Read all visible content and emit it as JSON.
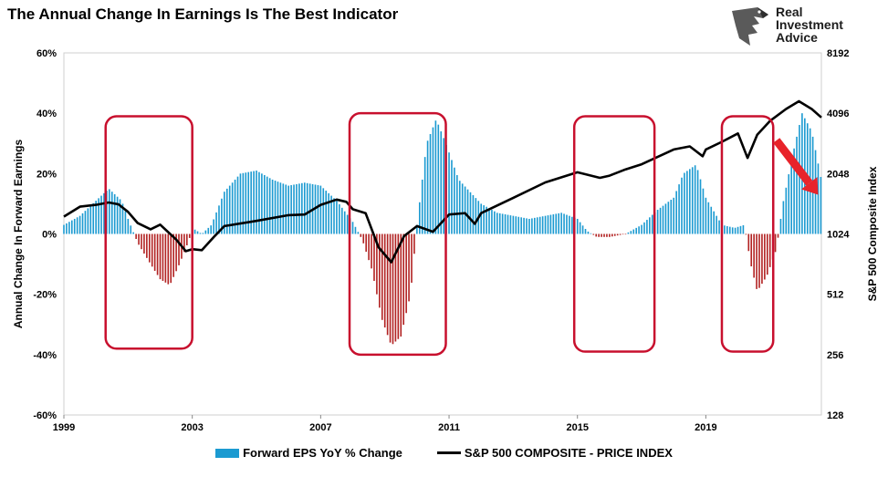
{
  "title": "The Annual Change In Earnings Is The Best Indicator",
  "logo": {
    "lines": [
      "Real",
      "Investment",
      "Advice"
    ],
    "icon": "eagle-head-icon"
  },
  "chart_data": {
    "type": "bar+line",
    "title": "The Annual Change In Earnings Is The Best Indicator",
    "x_ticks": [
      "1999",
      "2003",
      "2007",
      "2011",
      "2015",
      "2019"
    ],
    "x_range": [
      1999,
      2022.6
    ],
    "y_left": {
      "label": "Annual Change In Forward Earnings",
      "ticks": [
        "60%",
        "40%",
        "20%",
        "0%",
        "-20%",
        "-40%",
        "-60%"
      ],
      "range": [
        -60,
        60
      ]
    },
    "y_right": {
      "label": "S&P 500  Composite Index",
      "scale": "log2",
      "ticks": [
        "8192",
        "4096",
        "2048",
        "1024",
        "512",
        "256",
        "128"
      ],
      "range": [
        128,
        8192
      ]
    },
    "colors": {
      "positive": "#1b9ad1",
      "negative": "#b22222",
      "line": "#000000",
      "box": "#c8102e",
      "arrow": "#e8232a"
    },
    "series": [
      {
        "name": "Forward EPS YoY % Change",
        "kind": "bar",
        "points": [
          [
            1999.0,
            3
          ],
          [
            1999.5,
            6
          ],
          [
            2000.0,
            11
          ],
          [
            2000.4,
            15
          ],
          [
            2000.8,
            11
          ],
          [
            2001.0,
            5
          ],
          [
            2001.3,
            -3
          ],
          [
            2001.7,
            -10
          ],
          [
            2002.0,
            -15
          ],
          [
            2002.3,
            -17
          ],
          [
            2002.6,
            -10
          ],
          [
            2002.9,
            -2
          ],
          [
            2003.0,
            2
          ],
          [
            2003.3,
            0
          ],
          [
            2003.6,
            3
          ],
          [
            2004.0,
            14
          ],
          [
            2004.5,
            20
          ],
          [
            2005.0,
            21
          ],
          [
            2005.5,
            18
          ],
          [
            2006.0,
            16
          ],
          [
            2006.5,
            17
          ],
          [
            2007.0,
            16
          ],
          [
            2007.5,
            11
          ],
          [
            2008.0,
            4
          ],
          [
            2008.3,
            -2
          ],
          [
            2008.6,
            -12
          ],
          [
            2008.9,
            -28
          ],
          [
            2009.2,
            -37
          ],
          [
            2009.5,
            -34
          ],
          [
            2009.8,
            -20
          ],
          [
            2010.0,
            3
          ],
          [
            2010.3,
            30
          ],
          [
            2010.6,
            38
          ],
          [
            2010.9,
            30
          ],
          [
            2011.3,
            18
          ],
          [
            2012.0,
            10
          ],
          [
            2012.5,
            7
          ],
          [
            2013.0,
            6
          ],
          [
            2013.5,
            5
          ],
          [
            2014.0,
            6
          ],
          [
            2014.5,
            7
          ],
          [
            2015.0,
            5
          ],
          [
            2015.3,
            1
          ],
          [
            2015.6,
            -1
          ],
          [
            2016.0,
            -1
          ],
          [
            2016.5,
            0
          ],
          [
            2017.0,
            3
          ],
          [
            2017.5,
            8
          ],
          [
            2018.0,
            12
          ],
          [
            2018.3,
            20
          ],
          [
            2018.7,
            23
          ],
          [
            2019.0,
            12
          ],
          [
            2019.5,
            3
          ],
          [
            2019.9,
            2
          ],
          [
            2020.2,
            3
          ],
          [
            2020.4,
            -10
          ],
          [
            2020.6,
            -19
          ],
          [
            2020.9,
            -14
          ],
          [
            2021.2,
            -5
          ],
          [
            2021.4,
            10
          ],
          [
            2021.7,
            26
          ],
          [
            2022.0,
            40
          ],
          [
            2022.3,
            34
          ],
          [
            2022.6,
            18
          ]
        ]
      },
      {
        "name": "S&P 500 COMPOSITE - PRICE INDEX",
        "kind": "line",
        "points": [
          [
            1999.0,
            1250
          ],
          [
            1999.5,
            1400
          ],
          [
            2000.0,
            1430
          ],
          [
            2000.4,
            1470
          ],
          [
            2000.7,
            1440
          ],
          [
            2001.0,
            1320
          ],
          [
            2001.3,
            1160
          ],
          [
            2001.7,
            1080
          ],
          [
            2002.0,
            1140
          ],
          [
            2002.5,
            960
          ],
          [
            2002.8,
            840
          ],
          [
            2003.0,
            860
          ],
          [
            2003.3,
            850
          ],
          [
            2003.7,
            1000
          ],
          [
            2004.0,
            1120
          ],
          [
            2005.0,
            1190
          ],
          [
            2006.0,
            1270
          ],
          [
            2006.5,
            1280
          ],
          [
            2007.0,
            1430
          ],
          [
            2007.5,
            1520
          ],
          [
            2007.8,
            1480
          ],
          [
            2008.0,
            1360
          ],
          [
            2008.4,
            1300
          ],
          [
            2008.8,
            880
          ],
          [
            2009.2,
            740
          ],
          [
            2009.6,
            1000
          ],
          [
            2010.0,
            1120
          ],
          [
            2010.5,
            1050
          ],
          [
            2011.0,
            1280
          ],
          [
            2011.5,
            1300
          ],
          [
            2011.8,
            1150
          ],
          [
            2012.0,
            1300
          ],
          [
            2013.0,
            1550
          ],
          [
            2014.0,
            1850
          ],
          [
            2015.0,
            2080
          ],
          [
            2015.7,
            1950
          ],
          [
            2016.0,
            2000
          ],
          [
            2016.5,
            2150
          ],
          [
            2017.0,
            2280
          ],
          [
            2018.0,
            2700
          ],
          [
            2018.5,
            2800
          ],
          [
            2018.9,
            2500
          ],
          [
            2019.0,
            2700
          ],
          [
            2019.5,
            2950
          ],
          [
            2020.0,
            3250
          ],
          [
            2020.3,
            2450
          ],
          [
            2020.6,
            3200
          ],
          [
            2021.0,
            3750
          ],
          [
            2021.5,
            4300
          ],
          [
            2021.9,
            4700
          ],
          [
            2022.1,
            4500
          ],
          [
            2022.3,
            4300
          ],
          [
            2022.6,
            3900
          ]
        ]
      }
    ],
    "annotations": [
      {
        "kind": "box",
        "x_range": [
          2000.3,
          2003.0
        ],
        "y_range": [
          -38,
          39
        ]
      },
      {
        "kind": "box",
        "x_range": [
          2007.9,
          2010.9
        ],
        "y_range": [
          -40,
          40
        ]
      },
      {
        "kind": "box",
        "x_range": [
          2014.9,
          2017.4
        ],
        "y_range": [
          -39,
          39
        ]
      },
      {
        "kind": "box",
        "x_range": [
          2019.5,
          2021.1
        ],
        "y_range": [
          -39,
          39
        ]
      },
      {
        "kind": "arrow",
        "from": [
          2021.2,
          31
        ],
        "to": [
          2022.5,
          13
        ]
      }
    ],
    "legend": {
      "position": "bottom-center",
      "entries": [
        "Forward EPS YoY % Change",
        "S&P 500 COMPOSITE - PRICE INDEX"
      ]
    }
  }
}
